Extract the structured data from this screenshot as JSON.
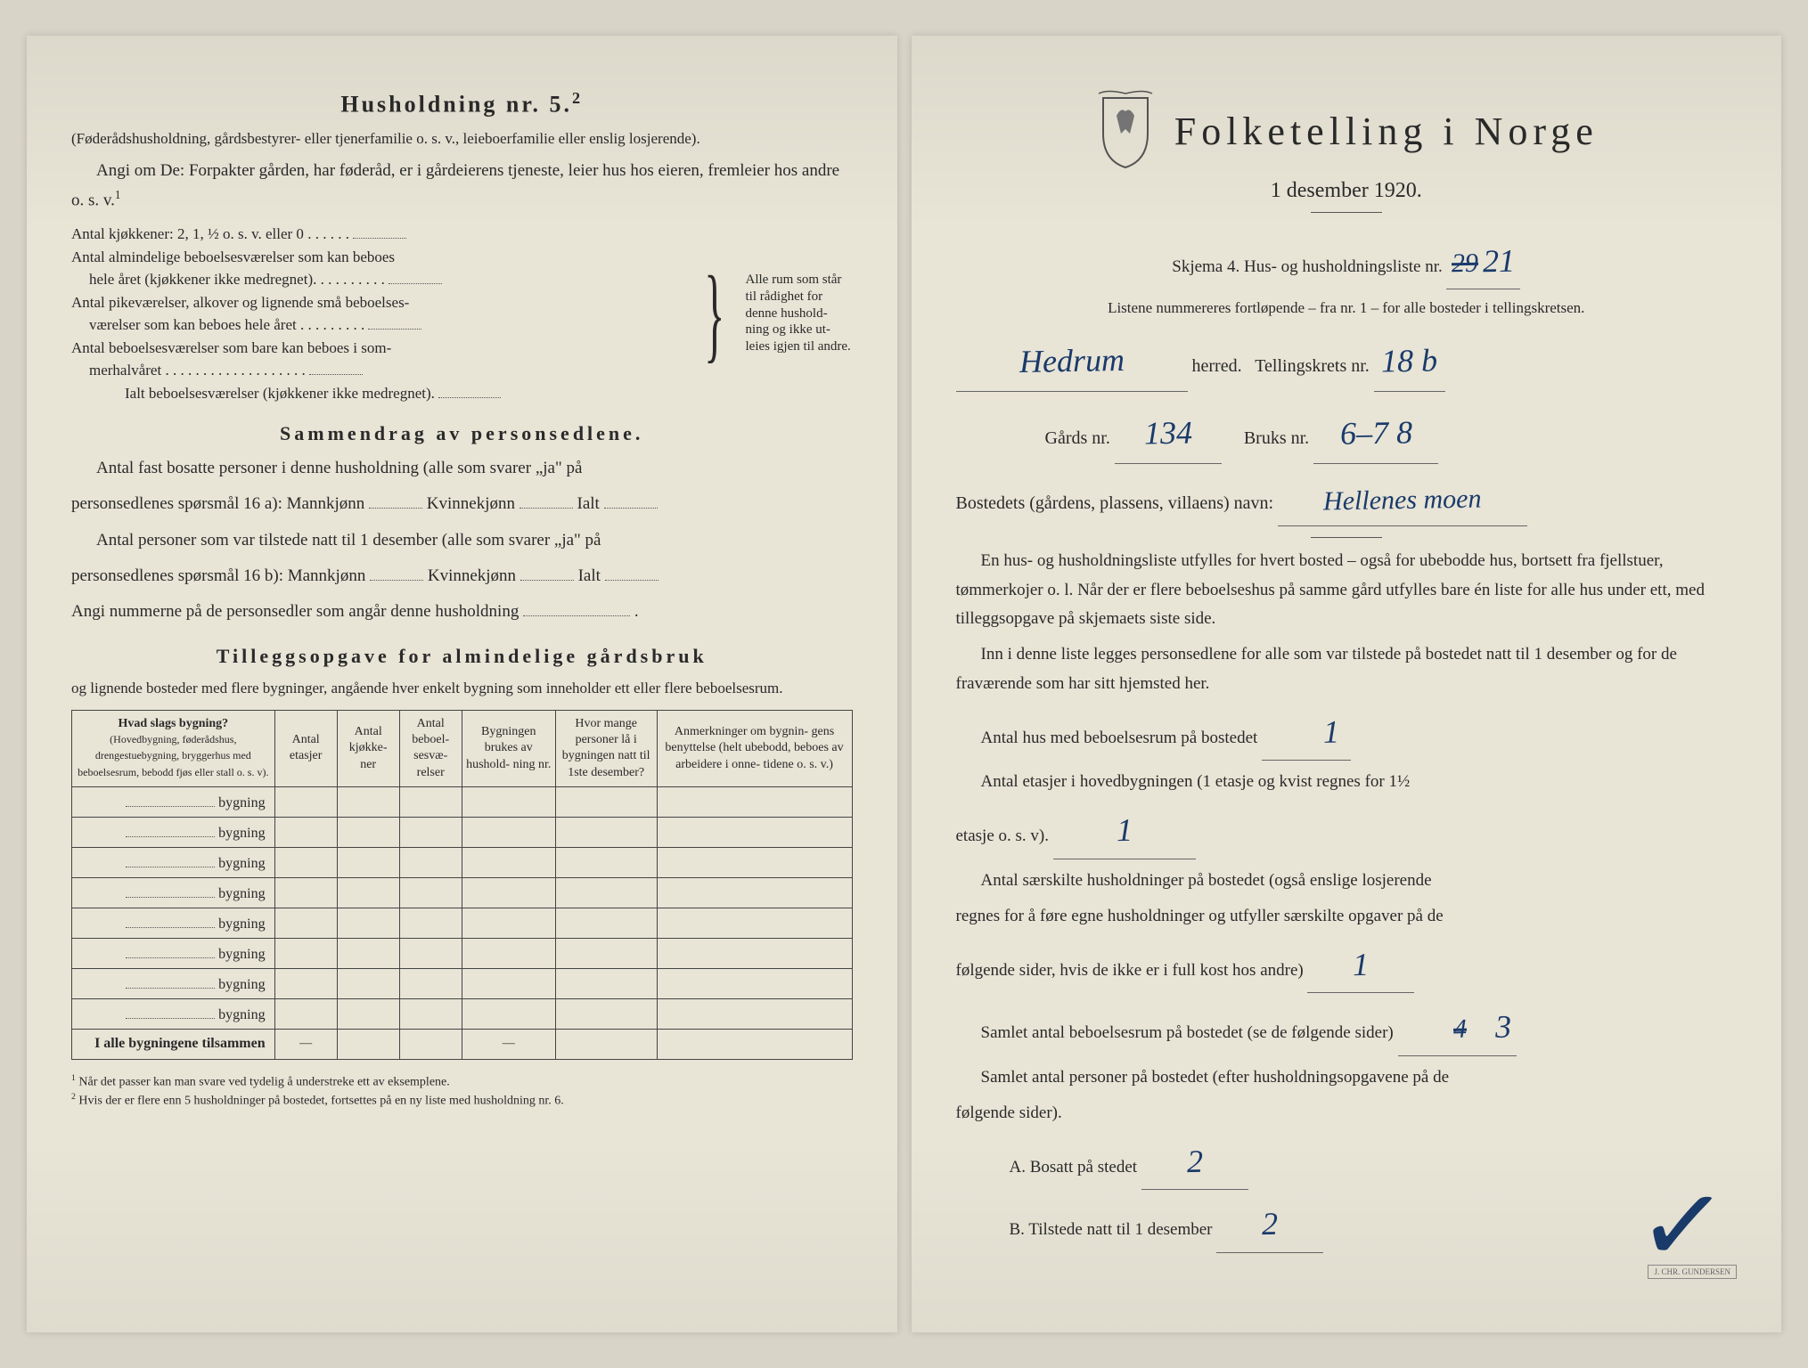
{
  "left": {
    "heading": "Husholdning nr. 5.",
    "heading_sup": "2",
    "sub1": "(Føderådshusholdning, gårdsbestyrer- eller tjenerfamilie o. s. v., leieboerfamilie eller enslig losjerende).",
    "sub2": "Angi om De: Forpakter gården, har føderåd, er i gårdeierens tjeneste, leier hus hos eieren, fremleier hos andre o. s. v.",
    "sub2_sup": "1",
    "room_lines": {
      "l1": "Antal kjøkkener: 2, 1, ½ o. s. v. eller 0",
      "l2a": "Antal almindelige beboelsesværelser som kan beboes",
      "l2b": "hele året (kjøkkener ikke medregnet).",
      "l3a": "Antal pikeværelser, alkover og lignende små beboelses-",
      "l3b": "værelser som kan beboes hele året",
      "l4a": "Antal beboelsesværelser som bare kan beboes i som-",
      "l4b": "merhalvåret",
      "sum": "Ialt beboelsesværelser (kjøkkener ikke medregnet).",
      "side": "Alle rum som står til rådighet for denne hushold- ning og ikke ut- leies igjen til andre."
    },
    "summary_heading": "Sammendrag av personsedlene.",
    "s1a": "Antal fast bosatte personer i denne husholdning (alle som svarer „ja\" på",
    "s1b": "personsedlenes spørsmål 16 a): Mannkjønn",
    "s1c": "Kvinnekjønn",
    "s1d": "Ialt",
    "s2a": "Antal personer som var tilstede natt til 1 desember (alle som svarer „ja\" på",
    "s2b": "personsedlenes spørsmål 16 b): Mannkjønn",
    "s3": "Angi nummerne på de personsedler som angår denne husholdning",
    "tillegg_heading": "Tilleggsopgave for almindelige gårdsbruk",
    "tillegg_sub": "og lignende bosteder med flere bygninger, angående hver enkelt bygning som inneholder ett eller flere beboelsesrum.",
    "table": {
      "h1": "Hvad slags bygning?",
      "h1sub": "(Hovedbygning, føderådshus, drengestuebygning, bryggerhus med beboelsesrum, bebodd fjøs eller stall o. s. v).",
      "h2": "Antal etasjer",
      "h3": "Antal kjøkke- ner",
      "h4": "Antal beboel- sesvæ- relser",
      "h5": "Bygningen brukes av hushold- ning nr.",
      "h6": "Hvor mange personer lå i bygningen natt til 1ste desember?",
      "h7": "Anmerkninger om bygnin- gens benyttelse (helt ubebodd, beboes av arbeidere i onne- tidene o. s. v.)",
      "row_label": "bygning",
      "sum_label": "I alle bygningene tilsammen"
    },
    "fn1": "Når det passer kan man svare ved tydelig å understreke ett av eksemplene.",
    "fn2": "Hvis der er flere enn 5 husholdninger på bostedet, fortsettes på en ny liste med husholdning nr. 6."
  },
  "right": {
    "title": "Folketelling i Norge",
    "subtitle": "1 desember 1920.",
    "schema_line": "Skjema 4.  Hus- og husholdningsliste nr.",
    "list_nr_strike": "29",
    "list_nr": "21",
    "list_note": "Listene nummereres fortløpende – fra nr. 1 – for alle bosteder i tellingskretsen.",
    "herred_val": "Hedrum",
    "herred_lbl": "herred.",
    "krets_lbl": "Tellingskrets nr.",
    "krets_val": "18 b",
    "gard_lbl": "Gårds nr.",
    "gard_val": "134",
    "bruk_lbl": "Bruks nr.",
    "bruk_val": "6–7 8",
    "bosted_lbl": "Bostedets (gårdens, plassens, villaens) navn:",
    "bosted_val": "Hellenes moen",
    "p1": "En hus- og husholdningsliste utfylles for hvert bosted – også for ubebodde hus, bortsett fra fjellstuer, tømmerkojer o. l.  Når der er flere beboelseshus på samme gård utfylles bare én liste for alle hus under ett, med tilleggsopgave på skjemaets siste side.",
    "p2": "Inn i denne liste legges personsedlene for alle som var tilstede på bostedet natt til 1 desember og for de fraværende som har sitt hjemsted her.",
    "q1": "Antal hus med beboelsesrum på bostedet",
    "q1_val": "1",
    "q2a": "Antal etasjer i hovedbygningen (1 etasje og kvist regnes for 1½",
    "q2b": "etasje o. s. v).",
    "q2_val": "1",
    "q3a": "Antal særskilte husholdninger på bostedet (også enslige losjerende",
    "q3b": "regnes for å føre egne husholdninger og utfyller særskilte opgaver på de",
    "q3c": "følgende sider, hvis de ikke er i full kost hos andre)",
    "q3_val": "1",
    "q4": "Samlet antal beboelsesrum på bostedet (se de følgende sider)",
    "q4_strike": "4",
    "q4_val": "3",
    "q5a": "Samlet antal personer på bostedet (efter husholdningsopgavene på de",
    "q5b": "følgende sider).",
    "qA": "A.  Bosatt på stedet",
    "qA_val": "2",
    "qB": "B.  Tilstede natt til 1 desember",
    "qB_val": "2"
  }
}
